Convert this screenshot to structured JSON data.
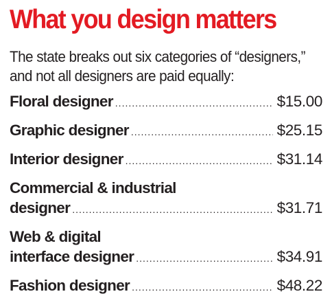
{
  "title": "What you design matters",
  "intro": {
    "line1": "The state breaks out six categories of “designers,”",
    "line2": "and not all designers are paid equally:"
  },
  "rows": [
    {
      "first_line": "",
      "name": "Floral designer",
      "price": "$15.00"
    },
    {
      "first_line": "",
      "name": "Graphic designer",
      "price": "$25.15"
    },
    {
      "first_line": "",
      "name": "Interior designer",
      "price": "$31.14"
    },
    {
      "first_line": "Commercial & industrial",
      "name": "designer",
      "price": "$31.71"
    },
    {
      "first_line": "Web & digital",
      "name": "interface designer",
      "price": "$34.91"
    },
    {
      "first_line": "",
      "name": "Fashion designer",
      "price": "$48.22"
    }
  ],
  "colors": {
    "title": "#e31b23",
    "text": "#231f20"
  }
}
